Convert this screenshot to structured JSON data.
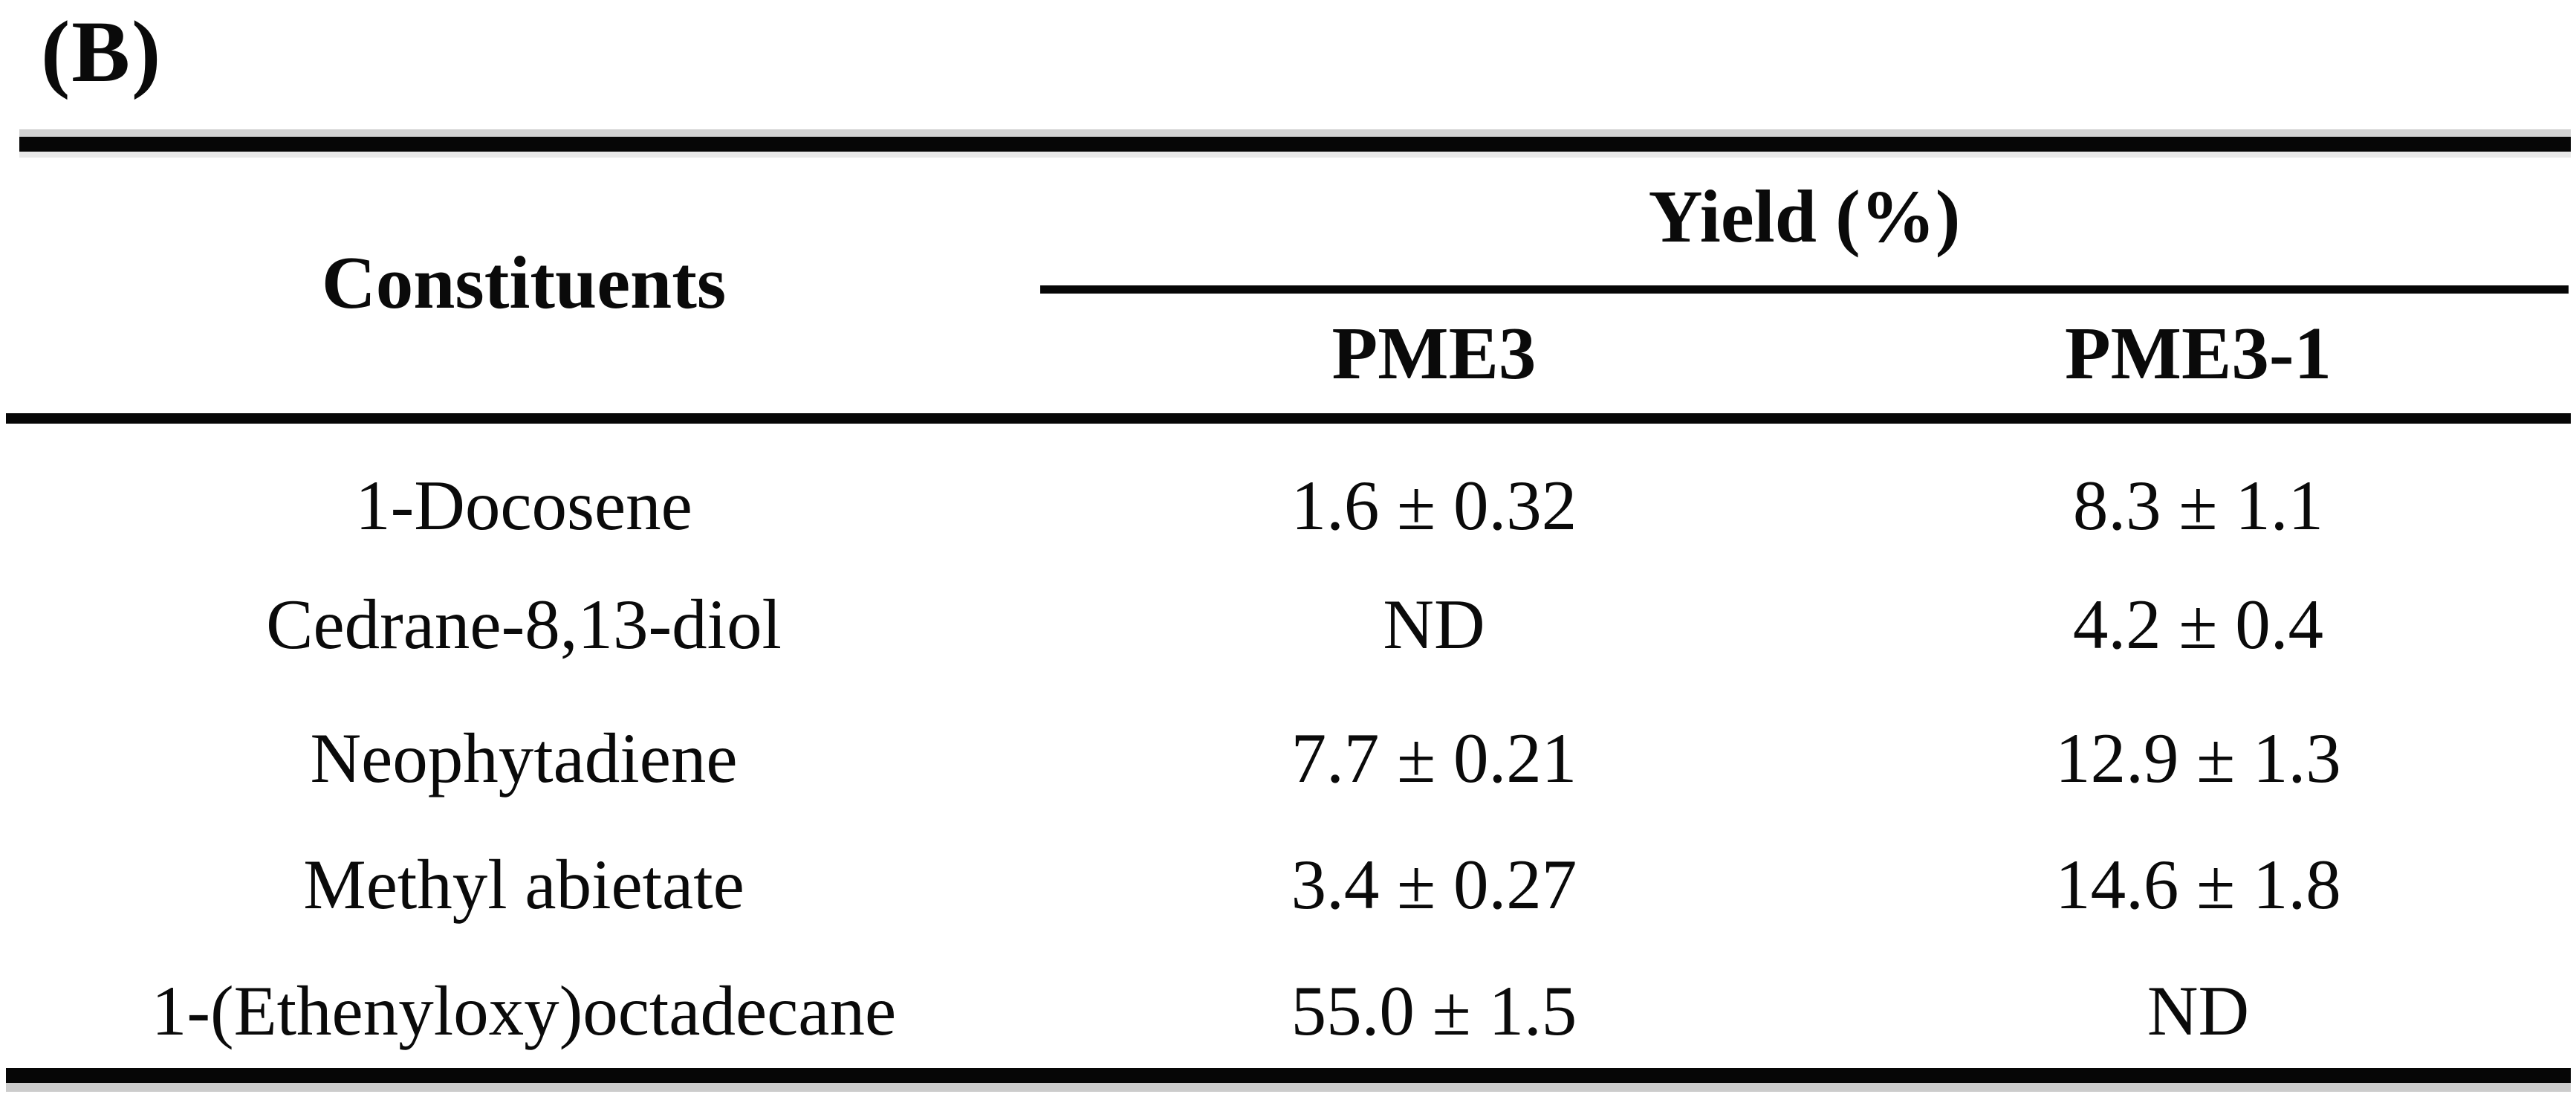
{
  "figure": {
    "panel_label": "(B)"
  },
  "table": {
    "columns": {
      "constituents": "Constituents",
      "group": "Yield (%)",
      "sub": [
        "PME3",
        "PME3-1"
      ]
    },
    "rows": [
      {
        "constituent": "1-Docosene",
        "pme3": "1.6 ± 0.32",
        "pme3_1": "8.3 ± 1.1"
      },
      {
        "constituent": "Cedrane-8,13-diol",
        "pme3": "ND",
        "pme3_1": "4.2 ± 0.4"
      },
      {
        "constituent": "Neophytadiene",
        "pme3": "7.7 ± 0.21",
        "pme3_1": "12.9 ± 1.3"
      },
      {
        "constituent": "Methyl abietate",
        "pme3": "3.4 ± 0.27",
        "pme3_1": "14.6 ± 1.8"
      },
      {
        "constituent": "1-(Ethenyloxy)octadecane",
        "pme3": "55.0 ± 1.5",
        "pme3_1": "ND"
      }
    ]
  },
  "colors": {
    "text": "#0a0a0a",
    "rule": "#060606",
    "background": "#ffffff"
  }
}
